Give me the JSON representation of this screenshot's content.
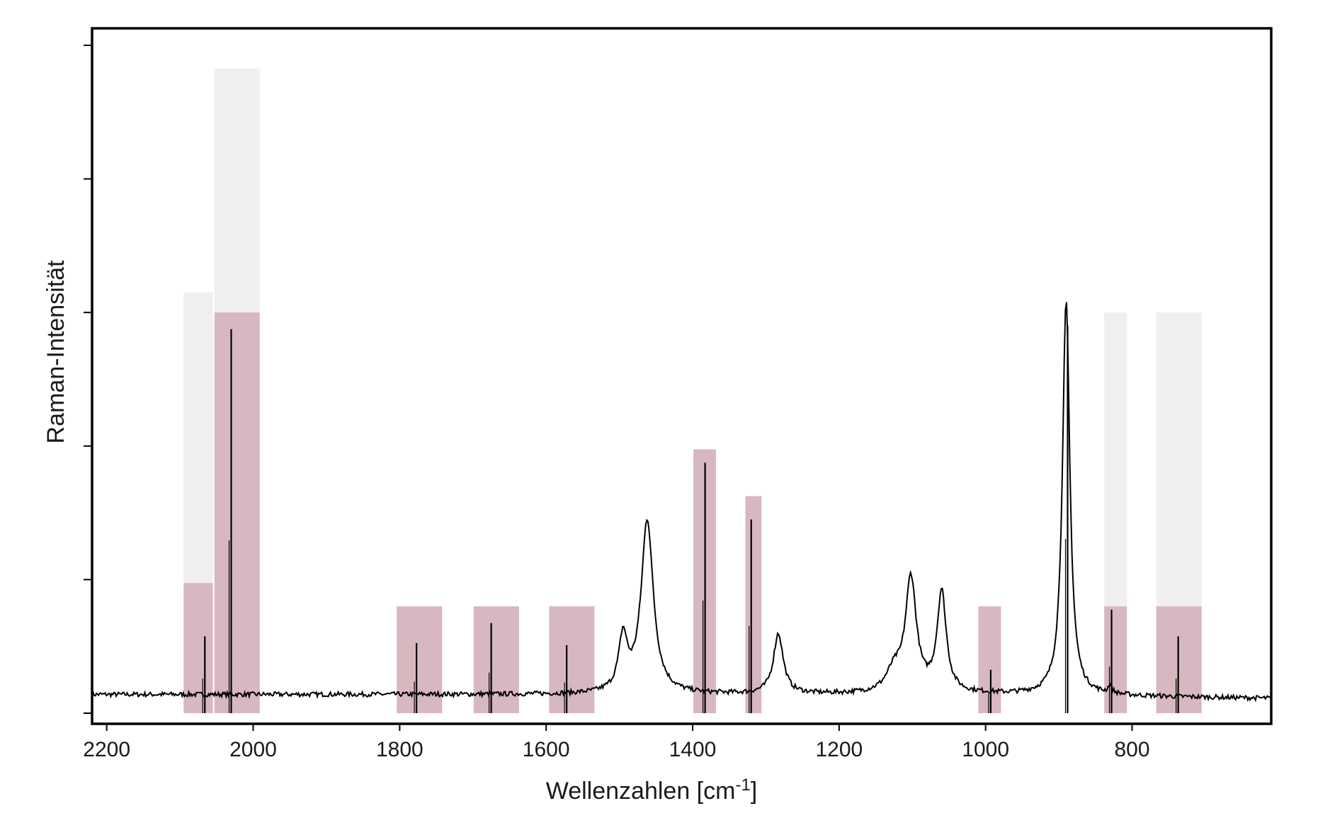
{
  "chart_data": {
    "type": "line",
    "title": "",
    "xlabel": "Wellenzahlen [cm",
    "xlabel_sup": "-1",
    "xlabel_tail": "]",
    "ylabel": "Raman-Intensität",
    "x_reversed": true,
    "xlim": [
      2220,
      610
    ],
    "ylim": [
      0,
      100
    ],
    "grid": false,
    "legend": "none",
    "x_ticks": [
      2200,
      2000,
      1800,
      1600,
      1400,
      1200,
      1000,
      800
    ],
    "x_tick_labels": [
      "2200",
      "2000",
      "1800",
      "1600",
      "1400",
      "1200",
      "1000",
      "800"
    ],
    "y_ticks": [
      0,
      20,
      40,
      60,
      80,
      100
    ],
    "y_tick_labels": [],
    "colors": {
      "spectrum": "#000000",
      "band": "#d8b8c0",
      "band_faded": "#f0eeee",
      "sticks": "#000000"
    },
    "series": [
      {
        "baseline": 2.8,
        "baseline_slope_per_cm": 0.0,
        "noise_amplitude": 0.35,
        "peaks": [
          {
            "x": 1495,
            "height": 8,
            "width": 14
          },
          {
            "x": 1462,
            "height": 26,
            "width": 20
          },
          {
            "x": 1283,
            "height": 9,
            "width": 16
          },
          {
            "x": 1125,
            "height": 3,
            "width": 25
          },
          {
            "x": 1102,
            "height": 17,
            "width": 18
          },
          {
            "x": 1060,
            "height": 15,
            "width": 15
          },
          {
            "x": 890,
            "height": 59,
            "width": 12
          },
          {
            "x": 830,
            "height": 1.2,
            "width": 6
          }
        ],
        "x_range": [
          2220,
          610
        ]
      }
    ],
    "reference_sticks": [
      {
        "x": 2066,
        "intensity": 11.5
      },
      {
        "x": 2030,
        "intensity": 57.5
      },
      {
        "x": 1777,
        "intensity": 10.5
      },
      {
        "x": 1675,
        "intensity": 13.5
      },
      {
        "x": 1572,
        "intensity": 10.2
      },
      {
        "x": 1383,
        "intensity": 37.5
      },
      {
        "x": 1320,
        "intensity": 29.0
      },
      {
        "x": 993,
        "intensity": 6.5
      },
      {
        "x": 888,
        "intensity": 58.0
      },
      {
        "x": 828,
        "intensity": 15.5
      },
      {
        "x": 737,
        "intensity": 11.5
      }
    ],
    "bands": [
      {
        "x_from": 2095,
        "x_to": 2055,
        "y_top": 19.5,
        "faded_top": 63
      },
      {
        "x_from": 2053,
        "x_to": 1991,
        "y_top": 60,
        "faded_top": 96.5
      },
      {
        "x_from": 1804,
        "x_to": 1742,
        "y_top": 16
      },
      {
        "x_from": 1699,
        "x_to": 1637,
        "y_top": 16
      },
      {
        "x_from": 1596,
        "x_to": 1534,
        "y_top": 16
      },
      {
        "x_from": 1399,
        "x_to": 1368,
        "y_top": 39.5
      },
      {
        "x_from": 1328,
        "x_to": 1306,
        "y_top": 32.5
      },
      {
        "x_from": 1010,
        "x_to": 979,
        "y_top": 16
      },
      {
        "x_from": 838,
        "x_to": 807,
        "y_top": 16,
        "faded_top": 60
      },
      {
        "x_from": 767,
        "x_to": 705,
        "y_top": 16,
        "faded_top": 60
      }
    ]
  }
}
